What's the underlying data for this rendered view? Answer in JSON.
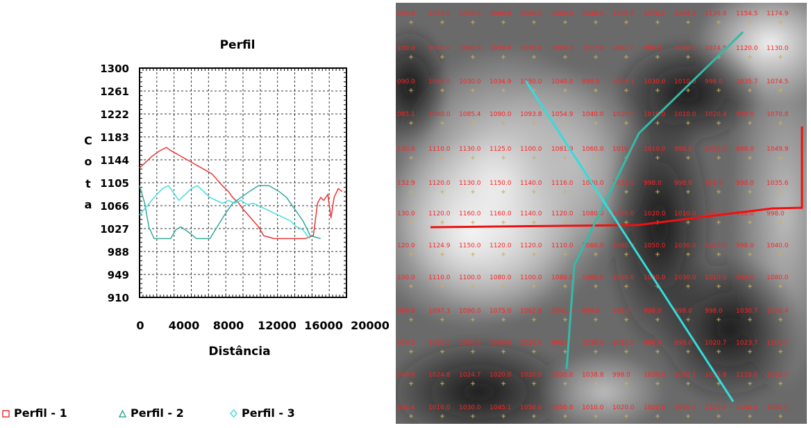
{
  "chart_data": {
    "type": "line",
    "title": "Perfil",
    "xlabel": "Distância",
    "ylabel": "Cota",
    "xlim": [
      0,
      20000
    ],
    "ylim": [
      910,
      1300
    ],
    "xticks": [
      0,
      4000,
      8000,
      12000,
      16000,
      20000
    ],
    "xtick_labels": [
      "0",
      "4000",
      "8000",
      "12000",
      "16000",
      "20000"
    ],
    "yticks": [
      910,
      949,
      988,
      1027,
      1066,
      1105,
      1144,
      1183,
      1222,
      1261,
      1300
    ],
    "ytick_labels": [
      "910",
      "949",
      "988",
      "1027",
      "1066",
      "1105",
      "1144",
      "1183",
      "1222",
      "1261",
      "1300"
    ],
    "grid": true,
    "legend": "bottom",
    "series": [
      {
        "name": "Perfil - 1",
        "color": "#ee3333",
        "marker": "square",
        "x": [
          0,
          600,
          1200,
          2000,
          2600,
          3000,
          4000,
          5000,
          6000,
          7000,
          7500,
          8000,
          8600,
          9000,
          9600,
          10000,
          10500,
          11000,
          11500,
          12000,
          13000,
          14000,
          15000,
          16000,
          16800,
          17200,
          17500,
          17800,
          18200,
          18500,
          18800,
          19200,
          19600
        ],
        "y": [
          1130,
          1140,
          1150,
          1160,
          1165,
          1160,
          1150,
          1140,
          1130,
          1120,
          1110,
          1100,
          1090,
          1080,
          1070,
          1060,
          1050,
          1040,
          1030,
          1015,
          1010,
          1010,
          1010,
          1010,
          1015,
          1070,
          1080,
          1075,
          1085,
          1045,
          1080,
          1095,
          1090
        ]
      },
      {
        "name": "Perfil - 2",
        "color": "#33aa99",
        "marker": "triangle",
        "x": [
          0,
          500,
          900,
          1400,
          2000,
          3000,
          3500,
          4000,
          4800,
          5500,
          6000,
          6800,
          7500,
          8200,
          9000,
          9800,
          10600,
          11500,
          12500,
          13500,
          14200,
          15000,
          15800,
          16500,
          17500
        ],
        "y": [
          1100,
          1070,
          1030,
          1010,
          1010,
          1010,
          1025,
          1030,
          1020,
          1010,
          1010,
          1010,
          1030,
          1050,
          1070,
          1080,
          1090,
          1100,
          1100,
          1090,
          1080,
          1060,
          1040,
          1015,
          1010
        ]
      },
      {
        "name": "Perfil - 3",
        "color": "#44dddd",
        "marker": "diamond",
        "x": [
          0,
          700,
          1400,
          2200,
          2800,
          3200,
          3800,
          4400,
          5000,
          5600,
          6200,
          6800,
          7400,
          8000,
          8600,
          9200,
          9800,
          10400,
          11000,
          11600,
          12200,
          12800,
          13400,
          14000,
          14600,
          15200,
          15800,
          16400
        ],
        "y": [
          1050,
          1065,
          1080,
          1095,
          1100,
          1090,
          1075,
          1085,
          1095,
          1100,
          1090,
          1080,
          1075,
          1070,
          1075,
          1070,
          1075,
          1068,
          1070,
          1065,
          1060,
          1055,
          1050,
          1045,
          1040,
          1030,
          1025,
          1010
        ]
      }
    ]
  },
  "map": {
    "grid_rows": [
      [
        "090.0",
        "1060.0",
        "1030.0",
        "1040.0",
        "1060.0",
        "1060.0",
        "1040.0",
        "1006.8",
        "1076.2",
        "1064.3",
        "1130.0",
        "1154.5",
        "1174.9"
      ],
      [
        "100.0",
        "1060.0",
        "1040.0",
        "1030.0",
        "1030.0",
        "1003.2",
        "1017.0",
        "1040.0",
        "998.0",
        "1010.0",
        "1074.5",
        "1120.0",
        "1130.0"
      ],
      [
        "090.0",
        "1060.0",
        "1030.0",
        "1034.9",
        "1050.0",
        "1040.0",
        "998.0",
        "1006.3",
        "1030.0",
        "1010.0",
        "998.0",
        "1035.7",
        "1074.5"
      ],
      [
        "085.1",
        "1080.0",
        "1085.4",
        "1090.0",
        "1093.8",
        "1054.9",
        "1040.0",
        "1020.0",
        "1010.0",
        "1010.0",
        "1020.4",
        "998.0",
        "1070.8"
      ],
      [
        "130.0",
        "1110.0",
        "1130.0",
        "1125.0",
        "1100.0",
        "1081.9",
        "1060.0",
        "1010.0",
        "1010.0",
        "998.0",
        "1010.0",
        "998.0",
        "1049.9"
      ],
      [
        "132.9",
        "1120.0",
        "1130.0",
        "1150.0",
        "1140.0",
        "1116.0",
        "1080.0",
        "1035.0",
        "998.0",
        "998.0",
        "998.0",
        "998.0",
        "1035.6"
      ],
      [
        "130.0",
        "1120.0",
        "1160.0",
        "1160.0",
        "1140.0",
        "1120.0",
        "1080.0",
        "1050.0",
        "1020.0",
        "1010.0",
        "1010.0",
        "998.0",
        "998.0"
      ],
      [
        "120.0",
        "1124.9",
        "1150.0",
        "1120.0",
        "1120.0",
        "1110.0",
        "1080.0",
        "1060.9",
        "1050.0",
        "1030.0",
        "1020.0",
        "998.0",
        "1040.0"
      ],
      [
        "100.0",
        "1110.0",
        "1100.0",
        "1080.0",
        "1100.0",
        "1080.0",
        "1060.0",
        "1030.0",
        "1030.0",
        "1030.0",
        "1010.0",
        "998.0",
        "1080.0"
      ],
      [
        "090.0",
        "1097.3",
        "1090.0",
        "1075.0",
        "1062.8",
        "1041.0",
        "998.0",
        "998.0",
        "998.0",
        "998.0",
        "998.0",
        "1030.7",
        "1076.4"
      ],
      [
        "070.0",
        "1080.0",
        "1060.0",
        "1040.0",
        "1020.0",
        "998.0",
        "1030.0",
        "1020.0",
        "998.0",
        "998.0",
        "1020.7",
        "1023.7",
        "1100.0"
      ],
      [
        "040.0",
        "1024.8",
        "1024.7",
        "1020.0",
        "1020.0",
        "1030.0",
        "1038.8",
        "998.0",
        "1030.0",
        "1020.1",
        "1035.8",
        "1110.0",
        "1090.0"
      ],
      [
        "032.4",
        "1010.0",
        "1030.0",
        "1045.1",
        "1050.0",
        "1050.0",
        "1010.0",
        "1020.0",
        "1020.0",
        "1090.0",
        "1120.0",
        "1140.0",
        "1046.0"
      ]
    ],
    "line_colors": {
      "perfil1": "#ee1111",
      "perfil2": "#33bbaa",
      "perfil3": "#33dddd"
    },
    "label_color": "#ff2222",
    "cross_color": "#c8b060"
  }
}
